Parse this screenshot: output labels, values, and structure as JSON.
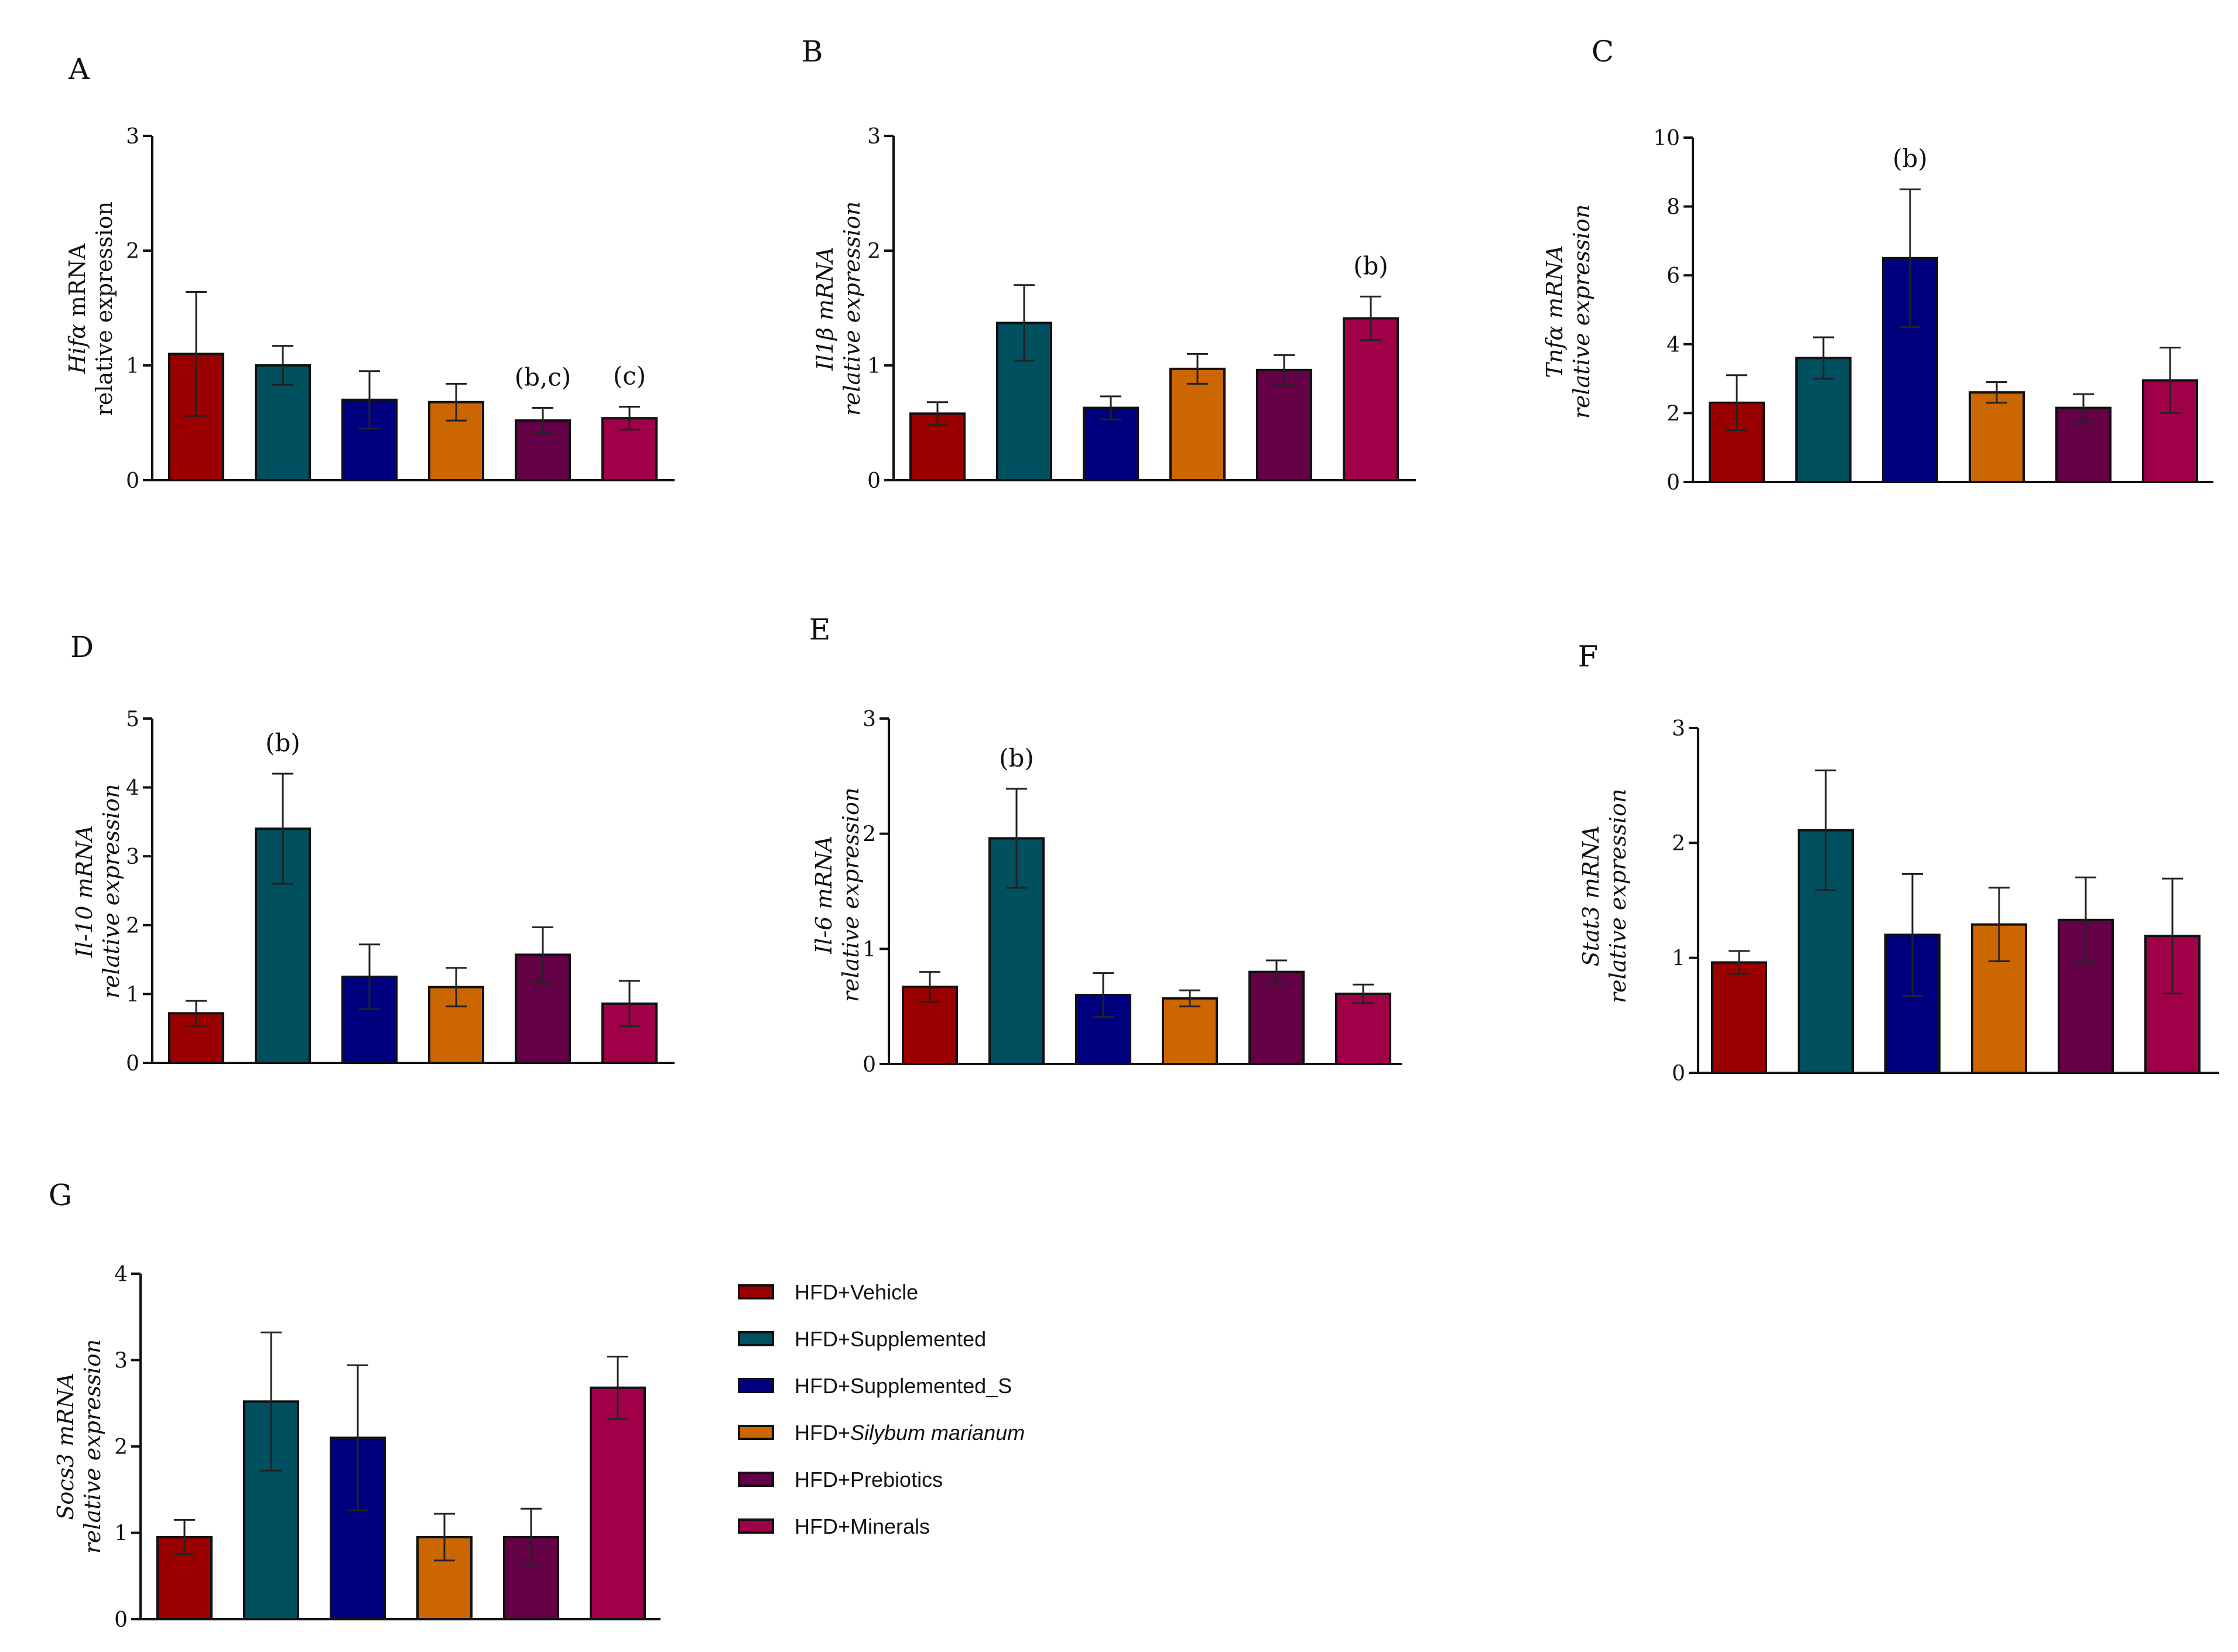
{
  "legend": [
    {
      "label": "HFD+Vehicle",
      "color": "#9b0000"
    },
    {
      "label": "HFD+Supplemented",
      "color": "#005060"
    },
    {
      "label": "HFD+Supplemented_S",
      "color": "#00007e"
    },
    {
      "label_prefix": "HFD+",
      "label_italic": "Silybum marianum",
      "color": "#cc6600"
    },
    {
      "label": "HFD+Prebiotics",
      "color": "#640046"
    },
    {
      "label": "HFD+Minerals",
      "color": "#a00048"
    }
  ],
  "chart_data": [
    {
      "panel": "A",
      "type": "bar",
      "categories": [
        "HFD+Vehicle",
        "HFD+Supplemented",
        "HFD+Supplemented_S",
        "HFD+Silybum marianum",
        "HFD+Prebiotics",
        "HFD+Minerals"
      ],
      "values": [
        1.1,
        1.0,
        0.7,
        0.68,
        0.52,
        0.54
      ],
      "errors": [
        0.54,
        0.17,
        0.25,
        0.16,
        0.11,
        0.1
      ],
      "ylabel_gene": "Hifα",
      "ylabel_suffix": " mRNA",
      "ylabel_line2": "relative expression",
      "ylim": [
        0,
        3
      ],
      "yticks": [
        "0",
        "1",
        "2",
        "3"
      ],
      "annotations": [
        {
          "index": 4,
          "text": "(b,c)"
        },
        {
          "index": 5,
          "text": "(c)"
        }
      ]
    },
    {
      "panel": "B",
      "type": "bar",
      "categories": [
        "HFD+Vehicle",
        "HFD+Supplemented",
        "HFD+Supplemented_S",
        "HFD+Silybum marianum",
        "HFD+Prebiotics",
        "HFD+Minerals"
      ],
      "values": [
        0.58,
        1.37,
        0.63,
        0.97,
        0.96,
        1.41
      ],
      "errors": [
        0.1,
        0.33,
        0.1,
        0.13,
        0.13,
        0.19
      ],
      "ylabel_gene": "Il1β mRNA",
      "ylabel_suffix": "",
      "ylabel_line2": "relative expression",
      "ylim": [
        0,
        3
      ],
      "yticks": [
        "0",
        "1",
        "2",
        "3"
      ],
      "annotations": [
        {
          "index": 5,
          "text": "(b)"
        }
      ]
    },
    {
      "panel": "C",
      "type": "bar",
      "categories": [
        "HFD+Vehicle",
        "HFD+Supplemented",
        "HFD+Supplemented_S",
        "HFD+Silybum marianum",
        "HFD+Prebiotics",
        "HFD+Minerals"
      ],
      "values": [
        2.3,
        3.6,
        6.5,
        2.6,
        2.15,
        2.95
      ],
      "errors": [
        0.8,
        0.6,
        2.0,
        0.3,
        0.4,
        0.95
      ],
      "ylabel_gene": "Tnfα mRNA",
      "ylabel_suffix": "",
      "ylabel_line2": "relative expression",
      "ylim": [
        0,
        10
      ],
      "yticks": [
        "0",
        "2",
        "4",
        "6",
        "8",
        "10"
      ],
      "annotations": [
        {
          "index": 2,
          "text": "(b)"
        }
      ]
    },
    {
      "panel": "D",
      "type": "bar",
      "categories": [
        "HFD+Vehicle",
        "HFD+Supplemented",
        "HFD+Supplemented_S",
        "HFD+Silybum marianum",
        "HFD+Prebiotics",
        "HFD+Minerals"
      ],
      "values": [
        0.72,
        3.4,
        1.25,
        1.1,
        1.57,
        0.86
      ],
      "errors": [
        0.18,
        0.8,
        0.47,
        0.28,
        0.4,
        0.33
      ],
      "ylabel_gene": "Il-10 mRNA",
      "ylabel_suffix": "",
      "ylabel_line2": "relative expression",
      "ylim": [
        0,
        5
      ],
      "yticks": [
        "0",
        "1",
        "2",
        "3",
        "4",
        "5"
      ],
      "annotations": [
        {
          "index": 1,
          "text": "(b)"
        }
      ]
    },
    {
      "panel": "E",
      "type": "bar",
      "categories": [
        "HFD+Vehicle",
        "HFD+Supplemented",
        "HFD+Supplemented_S",
        "HFD+Silybum marianum",
        "HFD+Prebiotics",
        "HFD+Minerals"
      ],
      "values": [
        0.67,
        1.96,
        0.6,
        0.57,
        0.8,
        0.61
      ],
      "errors": [
        0.13,
        0.43,
        0.19,
        0.07,
        0.1,
        0.08
      ],
      "ylabel_gene": "Il-6 mRNA",
      "ylabel_suffix": "",
      "ylabel_line2": "relative expression",
      "ylim": [
        0,
        3
      ],
      "yticks": [
        "0",
        "1",
        "2",
        "3"
      ],
      "annotations": [
        {
          "index": 1,
          "text": "(b)"
        }
      ]
    },
    {
      "panel": "F",
      "type": "bar",
      "categories": [
        "HFD+Vehicle",
        "HFD+Supplemented",
        "HFD+Supplemented_S",
        "HFD+Silybum marianum",
        "HFD+Prebiotics",
        "HFD+Minerals"
      ],
      "values": [
        0.96,
        2.11,
        1.2,
        1.29,
        1.33,
        1.19
      ],
      "errors": [
        0.1,
        0.52,
        0.53,
        0.32,
        0.37,
        0.5
      ],
      "ylabel_gene": "Stat3 mRNA",
      "ylabel_suffix": "",
      "ylabel_line2": "relative expression",
      "ylim": [
        0,
        3
      ],
      "yticks": [
        "0",
        "1",
        "2",
        "3"
      ],
      "annotations": []
    },
    {
      "panel": "G",
      "type": "bar",
      "categories": [
        "HFD+Vehicle",
        "HFD+Supplemented",
        "HFD+Supplemented_S",
        "HFD+Silybum marianum",
        "HFD+Prebiotics",
        "HFD+Minerals"
      ],
      "values": [
        0.95,
        2.52,
        2.1,
        0.95,
        0.95,
        2.68
      ],
      "errors": [
        0.2,
        0.8,
        0.84,
        0.27,
        0.33,
        0.36
      ],
      "ylabel_gene": "Socs3 mRNA",
      "ylabel_suffix": "",
      "ylabel_line2": "relative expression",
      "ylim": [
        0,
        4
      ],
      "yticks": [
        "0",
        "1",
        "2",
        "3",
        "4"
      ],
      "annotations": []
    }
  ]
}
